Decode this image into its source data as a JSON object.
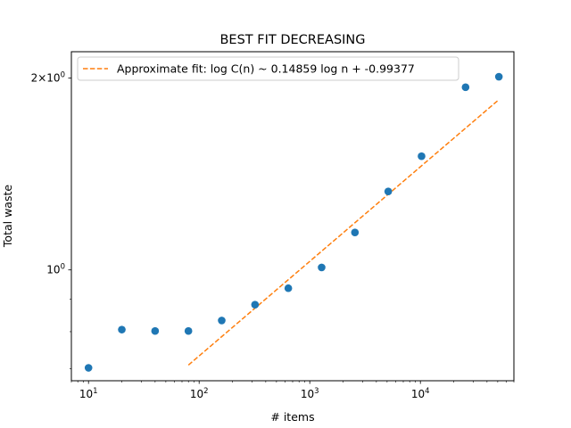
{
  "chart_data": {
    "type": "scatter",
    "title": "BEST FIT DECREASING",
    "xlabel": "# items",
    "ylabel": "Total waste",
    "xscale": "log",
    "yscale": "log",
    "xlim": [
      7.0,
      70000
    ],
    "ylim": [
      0.67,
      2.2
    ],
    "x_ticks": [
      {
        "value": 10,
        "base": "10",
        "exp": "1"
      },
      {
        "value": 100,
        "base": "10",
        "exp": "2"
      },
      {
        "value": 1000,
        "base": "10",
        "exp": "3"
      },
      {
        "value": 10000,
        "base": "10",
        "exp": "4"
      }
    ],
    "y_ticks": [
      {
        "value": 1.0,
        "base": "10",
        "exp": "0",
        "prefix": ""
      },
      {
        "value": 2.0,
        "base": "10",
        "exp": "0",
        "prefix": "2×"
      }
    ],
    "legend": {
      "position": "upper left",
      "entries": [
        {
          "label": "Approximate fit: log C(n) ~ 0.14859 log n + -0.99377",
          "style": "dashed",
          "color": "#ff7f0e"
        }
      ]
    },
    "series": [
      {
        "type": "scatter",
        "color": "#1f77b4",
        "x": [
          10,
          20,
          40,
          80,
          160,
          320,
          640,
          1280,
          2560,
          5120,
          10240,
          25600,
          51200
        ],
        "y": [
          0.702,
          0.806,
          0.802,
          0.802,
          0.833,
          0.882,
          0.936,
          1.009,
          1.145,
          1.328,
          1.508,
          1.935,
          2.01
        ]
      },
      {
        "type": "line",
        "style": "dashed",
        "color": "#ff7f0e",
        "x": [
          80,
          51200
        ],
        "y": [
          0.709,
          1.85
        ]
      }
    ]
  }
}
